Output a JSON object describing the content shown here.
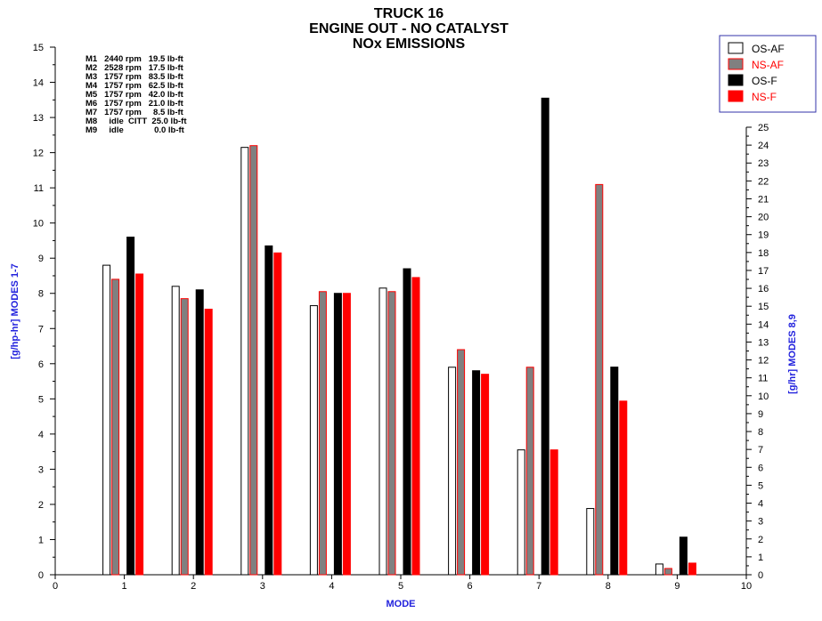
{
  "chart_data": {
    "type": "bar",
    "title_lines": [
      "TRUCK 16",
      "ENGINE OUT - NO CATALYST",
      "NOx EMISSIONS"
    ],
    "xlabel": "MODE",
    "ylabel_left": "[g/hp-hr] MODES 1-7",
    "ylabel_right": "[g/hr] MODES 8,9",
    "xlim": [
      0,
      10
    ],
    "ylim_left": [
      0,
      15
    ],
    "ylim_right": [
      0,
      25
    ],
    "x_ticks": [
      "0",
      "1",
      "2",
      "3",
      "4",
      "5",
      "6",
      "7",
      "8",
      "9",
      "10"
    ],
    "y_left_ticks": [
      "0",
      "1",
      "2",
      "3",
      "4",
      "5",
      "6",
      "7",
      "8",
      "9",
      "10",
      "11",
      "12",
      "13",
      "14",
      "15"
    ],
    "y_right_ticks": [
      "0",
      "1",
      "2",
      "3",
      "4",
      "5",
      "6",
      "7",
      "8",
      "9",
      "10",
      "11",
      "12",
      "13",
      "14",
      "15",
      "16",
      "17",
      "18",
      "19",
      "20",
      "21",
      "22",
      "23",
      "24",
      "25"
    ],
    "categories": [
      1,
      2,
      3,
      4,
      5,
      6,
      7,
      8,
      9
    ],
    "series": [
      {
        "name": "OS-AF",
        "fill": "#ffffff",
        "stroke": "#000000",
        "values": [
          8.8,
          8.2,
          12.15,
          7.65,
          8.15,
          5.9,
          3.55,
          3.7,
          0.6
        ]
      },
      {
        "name": "NS-AF",
        "fill": "#808080",
        "stroke": "#ff0000",
        "values": [
          8.4,
          7.85,
          12.2,
          8.05,
          8.05,
          6.4,
          5.9,
          21.8,
          0.35
        ]
      },
      {
        "name": "OS-F",
        "fill": "#000000",
        "stroke": "#000000",
        "values": [
          9.6,
          8.1,
          9.35,
          8.0,
          8.7,
          5.8,
          13.55,
          11.6,
          2.1
        ]
      },
      {
        "name": "NS-F",
        "fill": "#ff0000",
        "stroke": "#ff0000",
        "values": [
          8.55,
          7.55,
          9.15,
          8.0,
          8.45,
          5.7,
          3.55,
          9.7,
          0.65
        ]
      }
    ],
    "note": "modes 8 and 9 are plotted against the right axis (g/hr)",
    "legend": {
      "position": "top-right",
      "labels": [
        "OS-AF",
        "NS-AF",
        "OS-F",
        "NS-F"
      ],
      "label_colors": [
        "#000000",
        "#ff0000",
        "#000000",
        "#ff0000"
      ]
    },
    "annotation_lines": [
      "M1   2440 rpm   19.5 lb-ft",
      "M2   2528 rpm   17.5 lb-ft",
      "M3   1757 rpm   83.5 lb-ft",
      "M4   1757 rpm   62.5 lb-ft",
      "M5   1757 rpm   42.0 lb-ft",
      "M6   1757 rpm   21.0 lb-ft",
      "M7   1757 rpm     8.5 lb-ft",
      "M8     idle  CITT  25.0 lb-ft",
      "M9     idle             0.0 lb-ft"
    ],
    "grid": false
  }
}
